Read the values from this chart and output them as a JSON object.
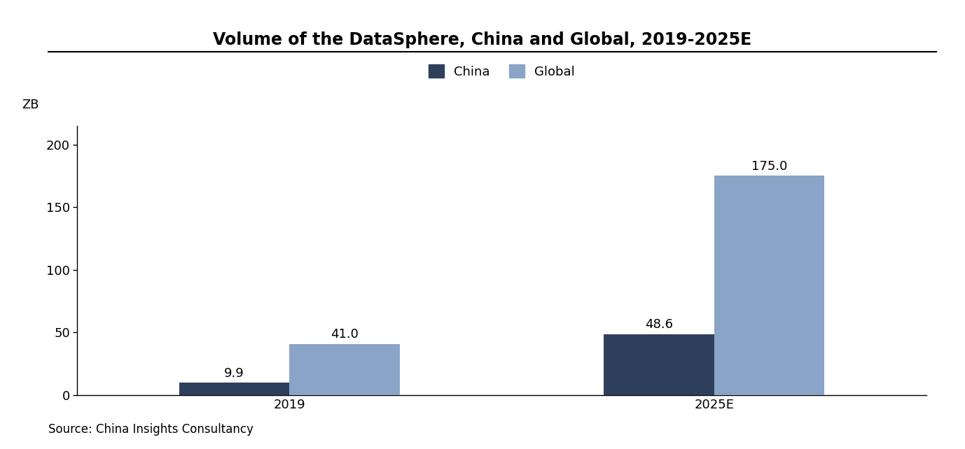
{
  "title": "Volume of the DataSphere, China and Global, 2019-2025E",
  "ylabel": "ZB",
  "source": "Source: China Insights Consultancy",
  "categories": [
    "2019",
    "2025E"
  ],
  "china_values": [
    9.9,
    48.6
  ],
  "global_values": [
    41.0,
    175.0
  ],
  "china_color": "#2e3f5c",
  "global_color": "#8aa4c8",
  "ylim": [
    0,
    215
  ],
  "yticks": [
    0,
    50,
    100,
    150,
    200
  ],
  "bar_width": 0.13,
  "title_fontsize": 17,
  "label_fontsize": 13,
  "tick_fontsize": 13,
  "annot_fontsize": 13,
  "legend_fontsize": 13,
  "source_fontsize": 12,
  "background_color": "#ffffff"
}
